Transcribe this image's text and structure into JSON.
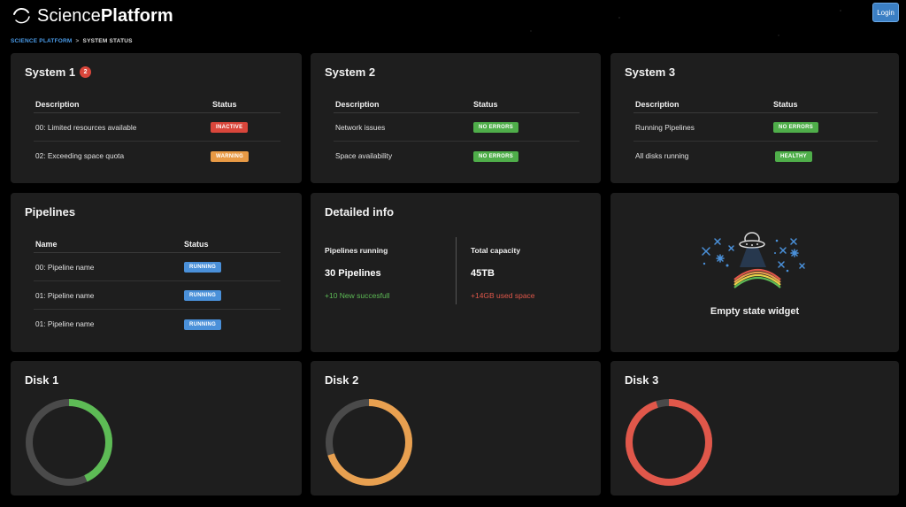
{
  "header": {
    "brand_light": "Science",
    "brand_bold": "Platform",
    "login_label": "Login"
  },
  "breadcrumb": {
    "root": "SCIENCE PLATFORM",
    "separator": ">",
    "current": "SYSTEM STATUS"
  },
  "systems": [
    {
      "title": "System 1",
      "alert_count": "2",
      "col_description": "Description",
      "col_status": "Status",
      "rows": [
        {
          "description": "00: Limited resources available",
          "status": "INACTIVE",
          "color": "#d9463b"
        },
        {
          "description": "02: Exceeding space quota",
          "status": "WARNING",
          "color": "#e89a45"
        }
      ]
    },
    {
      "title": "System 2",
      "col_description": "Description",
      "col_status": "Status",
      "rows": [
        {
          "description": "Network issues",
          "status": "NO ERRORS",
          "color": "#4fae4a"
        },
        {
          "description": "Space availability",
          "status": "NO ERRORS",
          "color": "#4fae4a"
        }
      ]
    },
    {
      "title": "System 3",
      "col_description": "Description",
      "col_status": "Status",
      "rows": [
        {
          "description": "Running Pipelines",
          "status": "NO ERRORS",
          "color": "#4fae4a"
        },
        {
          "description": "All disks running",
          "status": "HEALTHY",
          "color": "#4fae4a"
        }
      ]
    }
  ],
  "pipelines": {
    "title": "Pipelines",
    "col_name": "Name",
    "col_status": "Status",
    "rows": [
      {
        "name": "00: Pipeline name",
        "status": "RUNNING"
      },
      {
        "name": "01: Pipeline name",
        "status": "RUNNING"
      },
      {
        "name": "01: Pipeline name",
        "status": "RUNNING"
      }
    ]
  },
  "detailed_info": {
    "title": "Detailed info",
    "left": {
      "label": "Pipelines running",
      "value": "30 Pipelines",
      "delta": "+10 New succesfull"
    },
    "right": {
      "label": "Total capacity",
      "value": "45TB",
      "delta": "+14GB used space"
    }
  },
  "empty_widget": {
    "caption": "Empty state widget",
    "icon": "ufo-rainbow-illustration"
  },
  "disks": [
    {
      "title": "Disk 1",
      "used_fraction": 0.43,
      "color": "#5dbb55"
    },
    {
      "title": "Disk 2",
      "used_fraction": 0.7,
      "color": "#e8a050"
    },
    {
      "title": "Disk 3",
      "used_fraction": 0.95,
      "color": "#e0574a"
    }
  ],
  "colors": {
    "card_bg": "#1e1e1e",
    "accent": "#4a9be8",
    "track": "#4a4a4a"
  }
}
